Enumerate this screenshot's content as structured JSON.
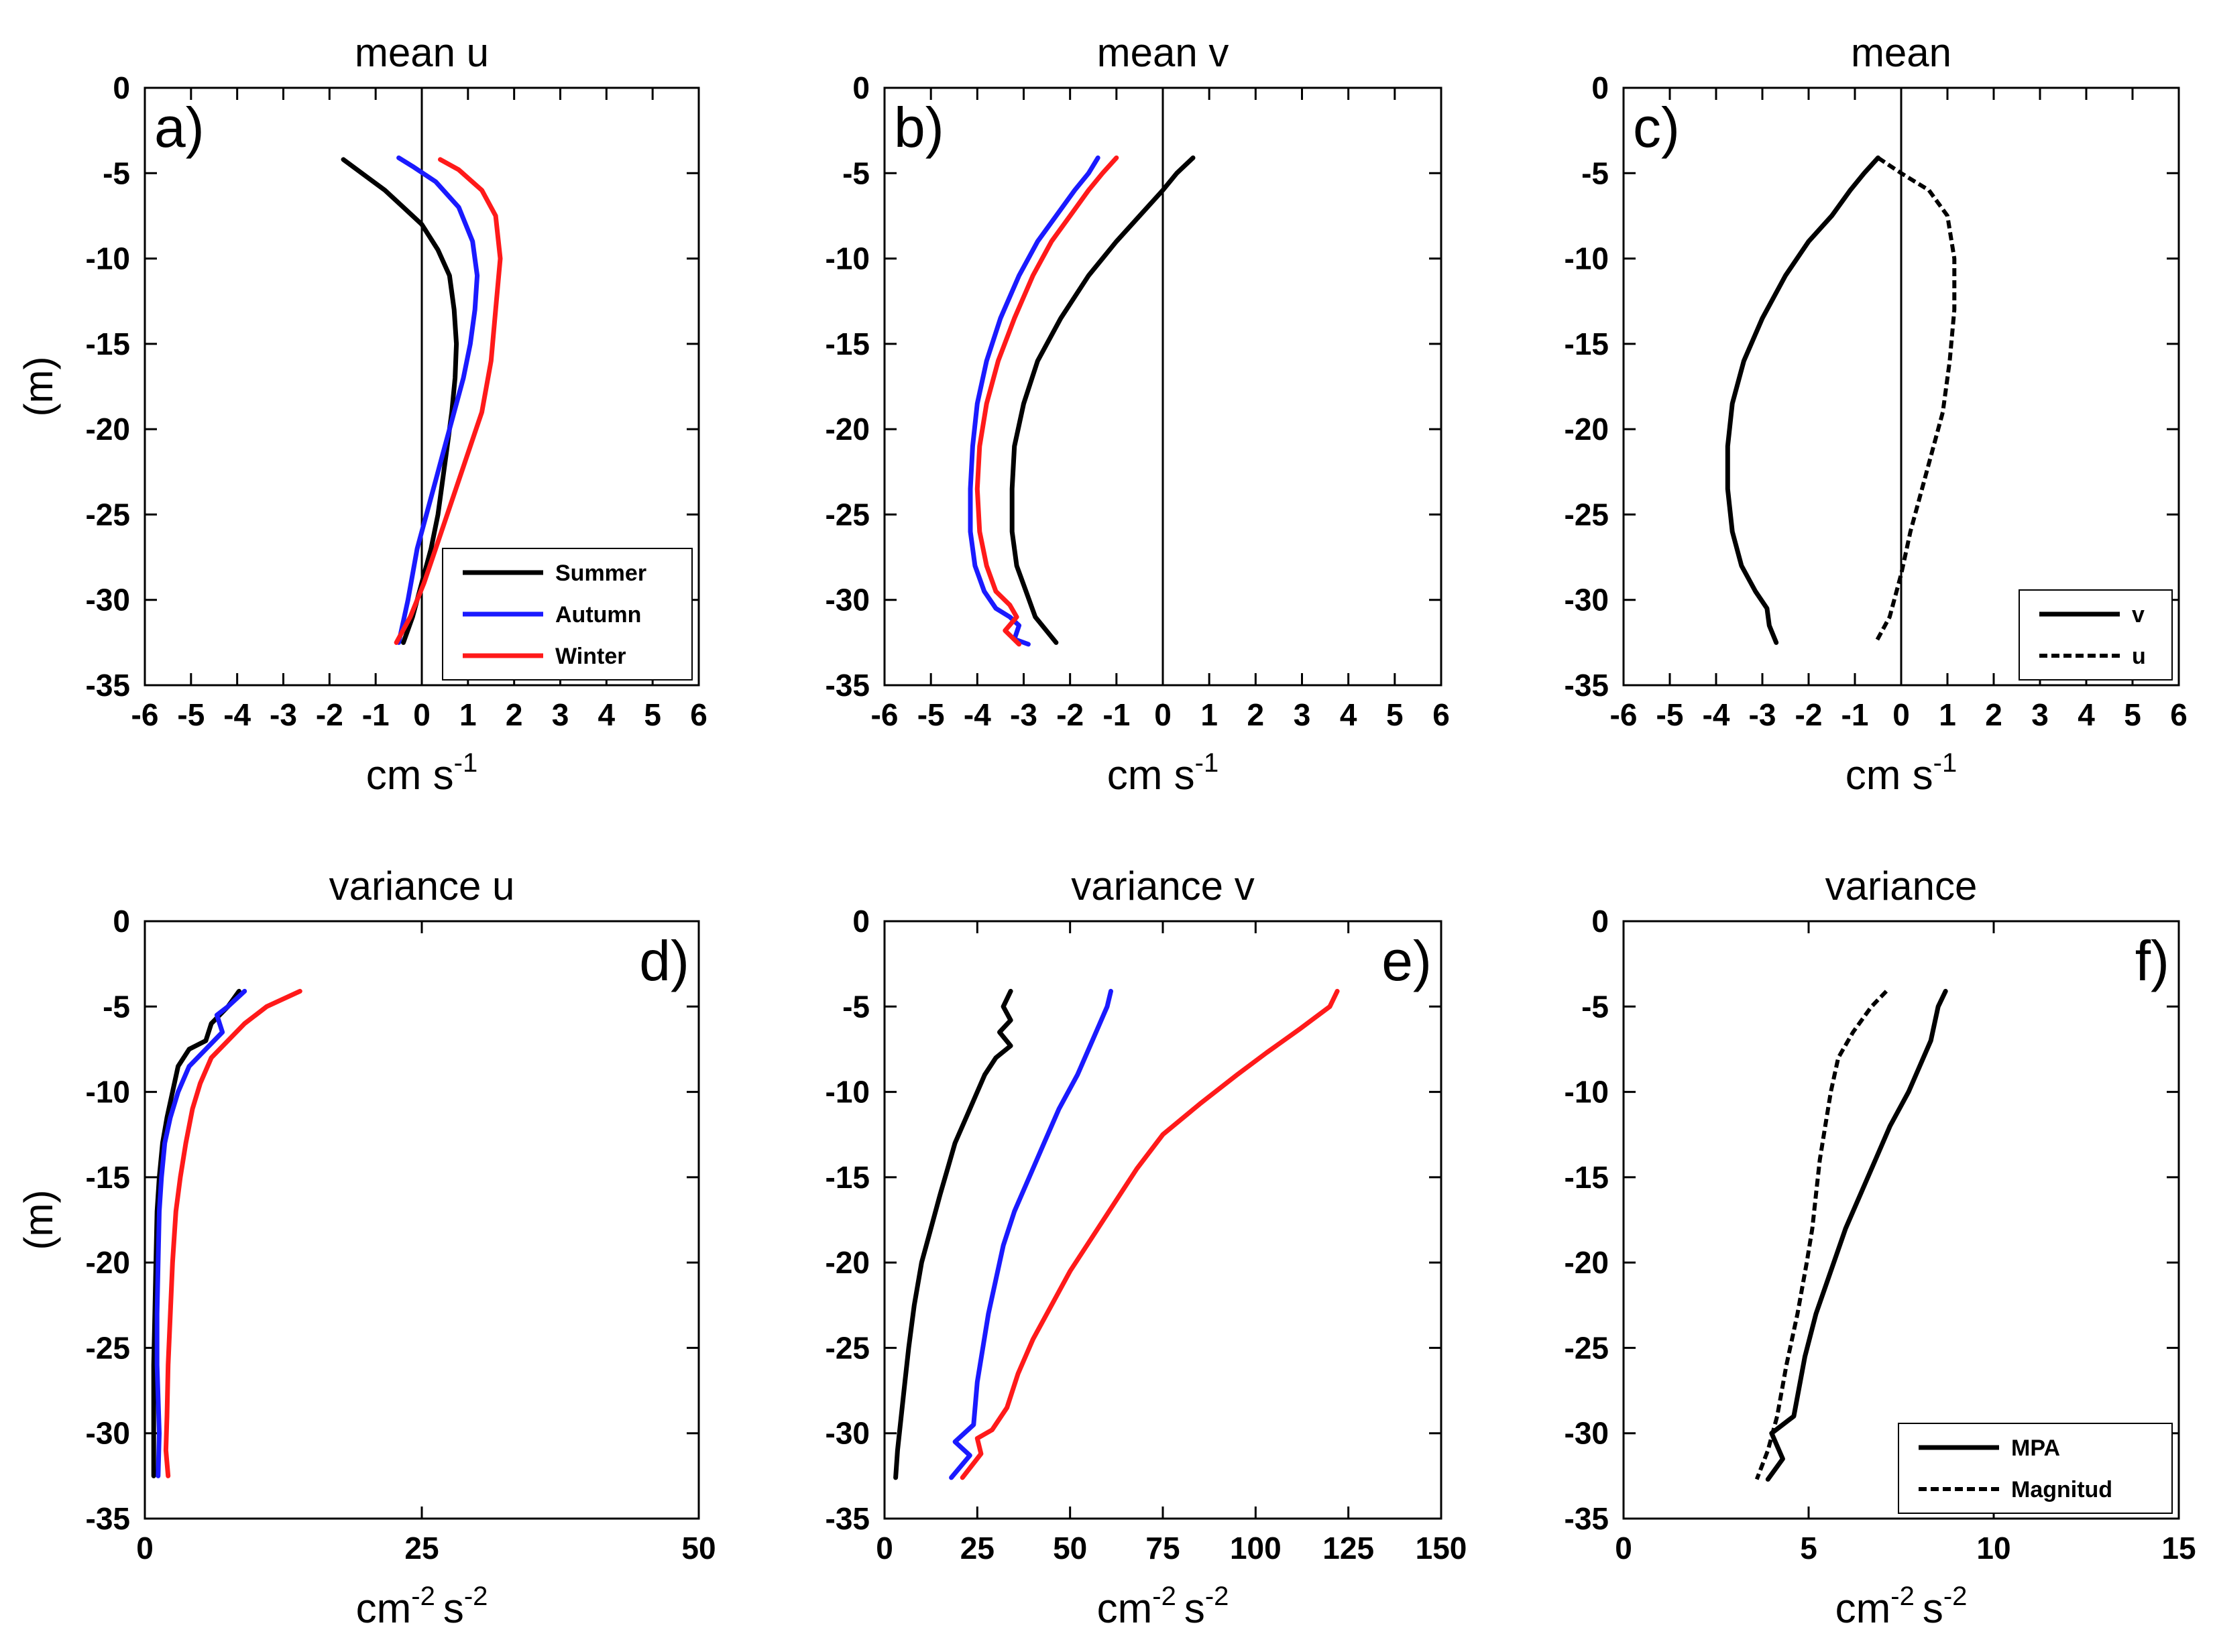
{
  "chart_data": [
    {
      "id": "a",
      "type": "line",
      "title": "mean u",
      "panel_label": "a)",
      "xlabel": "cm s",
      "xlabel_sup": "-1",
      "ylabel": "(m)",
      "xlim": [
        -6,
        6
      ],
      "ylim": [
        -35,
        0
      ],
      "xticks": [
        -6,
        -5,
        -4,
        -3,
        -2,
        -1,
        0,
        1,
        2,
        3,
        4,
        5,
        6
      ],
      "yticks": [
        0,
        -5,
        -10,
        -15,
        -20,
        -25,
        -30,
        -35
      ],
      "zero_line": true,
      "legend": "bottom-right",
      "series": [
        {
          "name": "Summer",
          "color": "#000000",
          "dash": "solid",
          "x": [
            -1.7,
            -1.3,
            -0.8,
            -0.4,
            0.0,
            0.35,
            0.6,
            0.7,
            0.75,
            0.72,
            0.65,
            0.55,
            0.45,
            0.35,
            0.2,
            0.0,
            -0.2,
            -0.4
          ],
          "y": [
            -4.2,
            -5,
            -6,
            -7,
            -8,
            -9.5,
            -11,
            -13,
            -15,
            -17,
            -19,
            -21,
            -23,
            -25,
            -27,
            -29,
            -31,
            -32.5
          ]
        },
        {
          "name": "Autumn",
          "color": "#1a1aff",
          "dash": "solid",
          "x": [
            -0.5,
            -0.2,
            0.3,
            0.8,
            1.1,
            1.2,
            1.15,
            1.05,
            0.9,
            0.7,
            0.5,
            0.3,
            0.1,
            -0.1,
            -0.3,
            -0.5
          ],
          "y": [
            -4.1,
            -4.6,
            -5.5,
            -7,
            -9,
            -11,
            -13,
            -15,
            -17,
            -19,
            -21,
            -23,
            -25,
            -27,
            -30,
            -32.5
          ]
        },
        {
          "name": "Winter",
          "color": "#ff1a1a",
          "dash": "solid",
          "x": [
            0.4,
            0.8,
            1.3,
            1.6,
            1.7,
            1.6,
            1.5,
            1.3,
            1.05,
            0.8,
            0.55,
            0.3,
            0.05,
            -0.25,
            -0.55
          ],
          "y": [
            -4.2,
            -4.8,
            -6,
            -7.5,
            -10,
            -13,
            -16,
            -19,
            -21,
            -23,
            -25,
            -27,
            -29,
            -31,
            -32.5
          ]
        }
      ]
    },
    {
      "id": "b",
      "type": "line",
      "title": "mean v",
      "panel_label": "b)",
      "xlabel": "cm s",
      "xlabel_sup": "-1",
      "ylabel": "",
      "xlim": [
        -6,
        6
      ],
      "ylim": [
        -35,
        0
      ],
      "xticks": [
        -6,
        -5,
        -4,
        -3,
        -2,
        -1,
        0,
        1,
        2,
        3,
        4,
        5,
        6
      ],
      "yticks": [
        0,
        -5,
        -10,
        -15,
        -20,
        -25,
        -30,
        -35
      ],
      "zero_line": true,
      "legend": "none",
      "series": [
        {
          "name": "Summer",
          "color": "#000000",
          "dash": "solid",
          "x": [
            0.65,
            0.3,
            0.0,
            -0.5,
            -1.0,
            -1.6,
            -2.2,
            -2.7,
            -3.0,
            -3.2,
            -3.25,
            -3.25,
            -3.15,
            -2.95,
            -2.75,
            -2.3
          ],
          "y": [
            -4.1,
            -5,
            -6,
            -7.5,
            -9,
            -11,
            -13.5,
            -16,
            -18.5,
            -21,
            -23.5,
            -26,
            -28,
            -29.5,
            -31,
            -32.5
          ]
        },
        {
          "name": "Autumn",
          "color": "#1a1aff",
          "dash": "solid",
          "x": [
            -1.4,
            -1.6,
            -1.9,
            -2.3,
            -2.7,
            -3.1,
            -3.5,
            -3.8,
            -4.0,
            -4.1,
            -4.15,
            -4.15,
            -4.05,
            -3.85,
            -3.6,
            -3.3,
            -3.1,
            -3.2,
            -2.9
          ],
          "y": [
            -4.1,
            -5,
            -6,
            -7.5,
            -9,
            -11,
            -13.5,
            -16,
            -18.5,
            -21,
            -23.5,
            -26,
            -28,
            -29.5,
            -30.5,
            -31,
            -31.5,
            -32.3,
            -32.6
          ]
        },
        {
          "name": "Winter",
          "color": "#ff1a1a",
          "dash": "solid",
          "x": [
            -1.0,
            -1.3,
            -1.6,
            -2.0,
            -2.4,
            -2.8,
            -3.2,
            -3.55,
            -3.8,
            -3.95,
            -4.0,
            -3.95,
            -3.8,
            -3.6,
            -3.3,
            -3.15,
            -3.4,
            -3.1
          ],
          "y": [
            -4.1,
            -5,
            -6,
            -7.5,
            -9,
            -11,
            -13.5,
            -16,
            -18.5,
            -21,
            -23.5,
            -26,
            -28,
            -29.5,
            -30.3,
            -31,
            -31.8,
            -32.6
          ]
        }
      ]
    },
    {
      "id": "c",
      "type": "line",
      "title": "mean",
      "panel_label": "c)",
      "xlabel": "cm s",
      "xlabel_sup": "-1",
      "ylabel": "",
      "xlim": [
        -6,
        6
      ],
      "ylim": [
        -35,
        0
      ],
      "xticks": [
        -6,
        -5,
        -4,
        -3,
        -2,
        -1,
        0,
        1,
        2,
        3,
        4,
        5,
        6
      ],
      "yticks": [
        0,
        -5,
        -10,
        -15,
        -20,
        -25,
        -30,
        -35
      ],
      "zero_line": true,
      "legend": "bottom-right",
      "series": [
        {
          "name": "v",
          "color": "#000000",
          "dash": "solid",
          "x": [
            -0.5,
            -0.8,
            -1.1,
            -1.5,
            -2.0,
            -2.5,
            -3.0,
            -3.4,
            -3.65,
            -3.75,
            -3.75,
            -3.65,
            -3.45,
            -3.15,
            -2.9,
            -2.85,
            -2.7
          ],
          "y": [
            -4.1,
            -5,
            -6,
            -7.5,
            -9,
            -11,
            -13.5,
            -16,
            -18.5,
            -21,
            -23.5,
            -26,
            -28,
            -29.5,
            -30.5,
            -31.5,
            -32.5
          ]
        },
        {
          "name": "u",
          "color": "#000000",
          "dash": "dashed",
          "x": [
            -0.5,
            0.0,
            0.6,
            1.0,
            1.15,
            1.15,
            1.05,
            0.9,
            0.7,
            0.45,
            0.2,
            0.0,
            -0.25,
            -0.55
          ],
          "y": [
            -4.1,
            -5,
            -6,
            -7.5,
            -10,
            -13,
            -16,
            -19,
            -21,
            -23.5,
            -26,
            -28.5,
            -31,
            -32.5
          ]
        }
      ]
    },
    {
      "id": "d",
      "type": "line",
      "title": "variance u",
      "panel_label": "d)",
      "xlabel": "cm",
      "xlabel_sup": "-2",
      "xlabel2": "s",
      "xlabel2_sup": "-2",
      "ylabel": "(m)",
      "xlim": [
        0,
        50
      ],
      "ylim": [
        -35,
        0
      ],
      "xticks": [
        0,
        25,
        50
      ],
      "yticks": [
        0,
        -5,
        -10,
        -15,
        -20,
        -25,
        -30,
        -35
      ],
      "zero_line": false,
      "legend": "none",
      "series": [
        {
          "name": "Summer",
          "color": "#000000",
          "dash": "solid",
          "x": [
            8.5,
            7.5,
            6.0,
            5.5,
            4.0,
            3.0,
            2.5,
            2.0,
            1.6,
            1.3,
            1.1,
            1.0,
            0.9,
            0.8,
            0.8,
            0.8
          ],
          "y": [
            -4.1,
            -5,
            -6,
            -7,
            -7.5,
            -8.5,
            -10,
            -11.5,
            -13,
            -15,
            -17,
            -20,
            -23,
            -26,
            -30,
            -32.5
          ]
        },
        {
          "name": "Autumn",
          "color": "#1a1aff",
          "dash": "solid",
          "x": [
            9.0,
            7.5,
            6.5,
            7.0,
            5.5,
            4.0,
            3.0,
            2.3,
            1.8,
            1.5,
            1.3,
            1.2,
            1.1,
            1.1,
            1.3,
            1.2
          ],
          "y": [
            -4.1,
            -5,
            -5.5,
            -6.5,
            -7.5,
            -8.5,
            -10,
            -11.5,
            -13,
            -15,
            -17,
            -20,
            -23,
            -26,
            -30,
            -32.5
          ]
        },
        {
          "name": "Winter",
          "color": "#ff1a1a",
          "dash": "solid",
          "x": [
            14.0,
            11.0,
            9.0,
            7.5,
            6.0,
            5.0,
            4.3,
            3.7,
            3.2,
            2.8,
            2.5,
            2.3,
            2.1,
            2.0,
            1.9,
            2.1
          ],
          "y": [
            -4.1,
            -5,
            -6,
            -7,
            -8,
            -9.5,
            -11,
            -13,
            -15,
            -17,
            -20,
            -23,
            -26,
            -29,
            -31,
            -32.5
          ]
        }
      ]
    },
    {
      "id": "e",
      "type": "line",
      "title": "variance v",
      "panel_label": "e)",
      "xlabel": "cm",
      "xlabel_sup": "-2",
      "xlabel2": "s",
      "xlabel2_sup": "-2",
      "ylabel": "",
      "xlim": [
        0,
        150
      ],
      "ylim": [
        -35,
        0
      ],
      "xticks": [
        0,
        25,
        50,
        75,
        100,
        125,
        150
      ],
      "yticks": [
        0,
        -5,
        -10,
        -15,
        -20,
        -25,
        -30,
        -35
      ],
      "zero_line": false,
      "legend": "none",
      "series": [
        {
          "name": "Summer",
          "color": "#000000",
          "dash": "solid",
          "x": [
            34,
            32,
            34,
            31,
            34,
            30,
            27,
            25,
            23,
            21,
            19,
            17,
            15,
            12.5,
            10,
            8,
            6.5,
            5.5,
            4.5,
            3.5,
            3
          ],
          "y": [
            -4.1,
            -5,
            -5.8,
            -6.5,
            -7.3,
            -8,
            -9,
            -10,
            -11,
            -12,
            -13,
            -14.5,
            -16,
            -18,
            -20,
            -22.5,
            -25,
            -27,
            -29,
            -31,
            -32.6
          ]
        },
        {
          "name": "Autumn",
          "color": "#1a1aff",
          "dash": "solid",
          "x": [
            61,
            60,
            56,
            52,
            47,
            43,
            39,
            35,
            32,
            30,
            28,
            26.5,
            25,
            24,
            19,
            23,
            18
          ],
          "y": [
            -4.1,
            -5,
            -7,
            -9,
            -11,
            -13,
            -15,
            -17,
            -19,
            -21,
            -23,
            -25,
            -27,
            -29.5,
            -30.5,
            -31.3,
            -32.6
          ]
        },
        {
          "name": "Winter",
          "color": "#ff1a1a",
          "dash": "solid",
          "x": [
            122,
            120,
            112,
            103,
            95,
            85,
            75,
            68,
            62,
            56,
            50,
            45,
            40,
            36,
            33,
            29,
            25,
            26,
            21
          ],
          "y": [
            -4.1,
            -5,
            -6.3,
            -7.7,
            -9,
            -10.7,
            -12.5,
            -14.5,
            -16.5,
            -18.5,
            -20.5,
            -22.5,
            -24.5,
            -26.5,
            -28.5,
            -29.8,
            -30.3,
            -31.2,
            -32.6
          ]
        }
      ]
    },
    {
      "id": "f",
      "type": "line",
      "title": "variance",
      "panel_label": "f)",
      "xlabel": "cm",
      "xlabel_sup": "-2",
      "xlabel2": "s",
      "xlabel2_sup": "-2",
      "ylabel": "",
      "xlim": [
        0,
        15
      ],
      "ylim": [
        -35,
        0
      ],
      "xticks": [
        0,
        5,
        10,
        15
      ],
      "yticks": [
        0,
        -5,
        -10,
        -15,
        -20,
        -25,
        -30,
        -35
      ],
      "zero_line": false,
      "legend": "bottom-right",
      "series": [
        {
          "name": "MPA",
          "color": "#000000",
          "dash": "solid",
          "x": [
            8.7,
            8.5,
            8.3,
            8.1,
            7.7,
            7.2,
            6.8,
            6.4,
            6.0,
            5.6,
            5.2,
            4.9,
            4.6,
            4.0,
            4.3,
            3.9
          ],
          "y": [
            -4.1,
            -5,
            -7,
            -8,
            -10,
            -12,
            -14,
            -16,
            -18,
            -20.5,
            -23,
            -25.5,
            -29,
            -30,
            -31.5,
            -32.7
          ]
        },
        {
          "name": "Magnitud",
          "color": "#000000",
          "dash": "dashed",
          "x": [
            7.1,
            6.7,
            6.2,
            5.8,
            5.6,
            5.45,
            5.3,
            5.2,
            5.1,
            4.95,
            4.7,
            4.4,
            4.15,
            3.9,
            3.6
          ],
          "y": [
            -4.1,
            -5,
            -6.5,
            -8,
            -10,
            -12,
            -14,
            -16,
            -18,
            -20,
            -23,
            -26,
            -29,
            -31,
            -32.7
          ]
        }
      ]
    }
  ]
}
